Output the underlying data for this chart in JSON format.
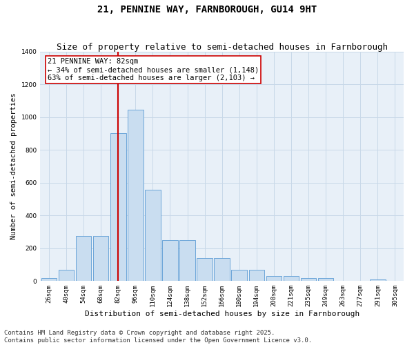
{
  "title": "21, PENNINE WAY, FARNBOROUGH, GU14 9HT",
  "subtitle": "Size of property relative to semi-detached houses in Farnborough",
  "xlabel": "Distribution of semi-detached houses by size in Farnborough",
  "ylabel": "Number of semi-detached properties",
  "categories": [
    "26sqm",
    "40sqm",
    "54sqm",
    "68sqm",
    "82sqm",
    "96sqm",
    "110sqm",
    "124sqm",
    "138sqm",
    "152sqm",
    "166sqm",
    "180sqm",
    "194sqm",
    "208sqm",
    "221sqm",
    "235sqm",
    "249sqm",
    "263sqm",
    "277sqm",
    "291sqm",
    "305sqm"
  ],
  "values": [
    20,
    70,
    275,
    275,
    900,
    1045,
    555,
    250,
    250,
    140,
    140,
    70,
    70,
    30,
    30,
    20,
    20,
    0,
    0,
    10,
    0
  ],
  "bar_color": "#c9ddf0",
  "bar_edge_color": "#5b9bd5",
  "property_label": "21 PENNINE WAY: 82sqm",
  "annotation_line1": "← 34% of semi-detached houses are smaller (1,148)",
  "annotation_line2": "63% of semi-detached houses are larger (2,103) →",
  "vline_color": "#cc0000",
  "annotation_box_color": "#cc0000",
  "ylim": [
    0,
    1400
  ],
  "yticks": [
    0,
    200,
    400,
    600,
    800,
    1000,
    1200,
    1400
  ],
  "grid_color": "#c8d8e8",
  "bg_color": "#e8f0f8",
  "footer_line1": "Contains HM Land Registry data © Crown copyright and database right 2025.",
  "footer_line2": "Contains public sector information licensed under the Open Government Licence v3.0.",
  "title_fontsize": 10,
  "subtitle_fontsize": 9,
  "xlabel_fontsize": 8,
  "ylabel_fontsize": 7.5,
  "tick_fontsize": 6.5,
  "annotation_fontsize": 7.5,
  "footer_fontsize": 6.5
}
